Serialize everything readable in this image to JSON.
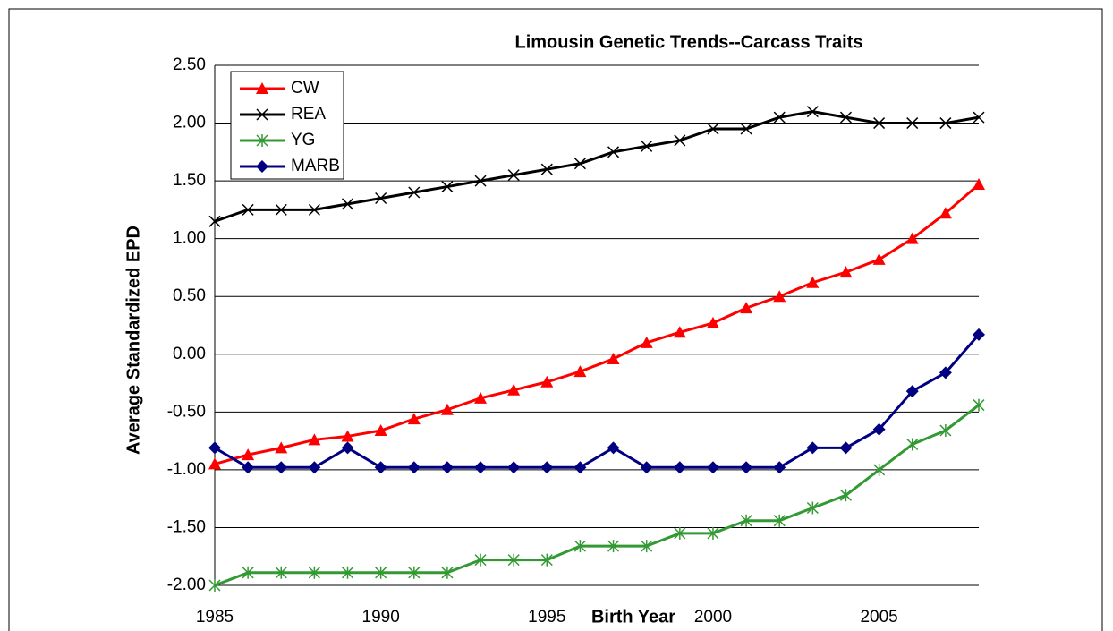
{
  "chart_data": {
    "type": "line",
    "title": "Limousin Genetic Trends--Carcass Traits",
    "x_label": "Birth Year",
    "y_label": "Average Standardized EPD",
    "x": [
      1985,
      1986,
      1987,
      1988,
      1989,
      1990,
      1991,
      1992,
      1993,
      1994,
      1995,
      1996,
      1997,
      1998,
      1999,
      2000,
      2001,
      2002,
      2003,
      2004,
      2005,
      2006,
      2007,
      2008
    ],
    "xlim": [
      1985,
      2008
    ],
    "xticks": [
      1985,
      1990,
      1995,
      2000,
      2005
    ],
    "ylim": [
      -2,
      2.5
    ],
    "yticks": [
      {
        "value": -2,
        "label": "-2.00"
      },
      {
        "value": -1.5,
        "label": "-1.50"
      },
      {
        "value": -1,
        "label": "-1.00"
      },
      {
        "value": -0.5,
        "label": "-0.50"
      },
      {
        "value": 0,
        "label": "0.00"
      },
      {
        "value": 0.5,
        "label": "0.50"
      },
      {
        "value": 1,
        "label": "1.00"
      },
      {
        "value": 1.5,
        "label": "1.50"
      },
      {
        "value": 2,
        "label": "2.00"
      },
      {
        "value": 2.5,
        "label": "2.50"
      }
    ],
    "grid": true,
    "legend": "upper left",
    "series": [
      {
        "name": "CW",
        "color": "#ff0000",
        "marker": "triangle",
        "values": [
          -0.95,
          -0.87,
          -0.81,
          -0.74,
          -0.71,
          -0.66,
          -0.56,
          -0.48,
          -0.38,
          -0.31,
          -0.24,
          -0.15,
          -0.04,
          0.1,
          0.19,
          0.27,
          0.4,
          0.5,
          0.62,
          0.71,
          0.82,
          1.0,
          1.22,
          1.47
        ]
      },
      {
        "name": "REA",
        "color": "#000000",
        "marker": "x",
        "values": [
          1.15,
          1.25,
          1.25,
          1.25,
          1.3,
          1.35,
          1.4,
          1.45,
          1.5,
          1.55,
          1.6,
          1.65,
          1.75,
          1.8,
          1.85,
          1.95,
          1.95,
          2.05,
          2.1,
          2.05,
          2.0,
          2.0,
          2.0,
          2.05
        ]
      },
      {
        "name": "YG",
        "color": "#339933",
        "marker": "asterisk",
        "values": [
          -2.0,
          -1.89,
          -1.89,
          -1.89,
          -1.89,
          -1.89,
          -1.89,
          -1.89,
          -1.78,
          -1.78,
          -1.78,
          -1.66,
          -1.66,
          -1.66,
          -1.55,
          -1.55,
          -1.44,
          -1.44,
          -1.33,
          -1.22,
          -1.0,
          -0.78,
          -0.66,
          -0.44
        ]
      },
      {
        "name": "MARB",
        "color": "#000080",
        "marker": "diamond",
        "values": [
          -0.81,
          -0.98,
          -0.98,
          -0.98,
          -0.81,
          -0.98,
          -0.98,
          -0.98,
          -0.98,
          -0.98,
          -0.98,
          -0.98,
          -0.81,
          -0.98,
          -0.98,
          -0.98,
          -0.98,
          -0.98,
          -0.81,
          -0.81,
          -0.65,
          -0.32,
          -0.16,
          0.17
        ]
      }
    ]
  }
}
